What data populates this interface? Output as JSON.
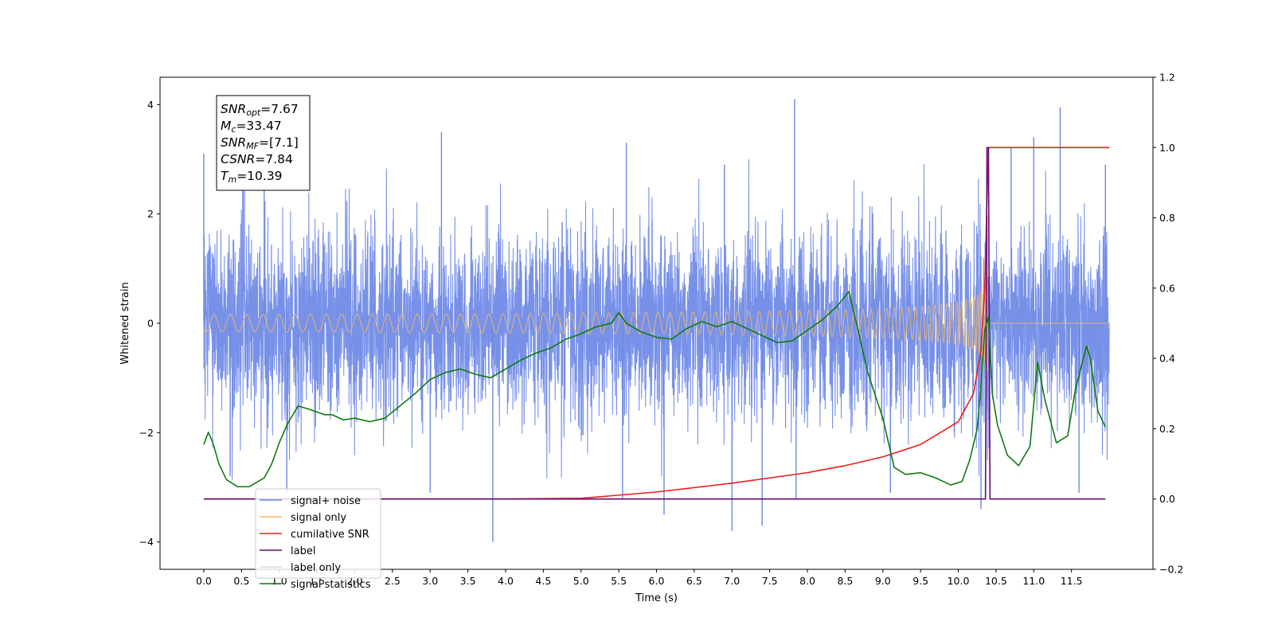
{
  "chart_data": {
    "type": "line",
    "title": "",
    "xlabel": "Time (s)",
    "ylabel": "Whitened strain",
    "xlim": [
      -0.58,
      12.58
    ],
    "ylim": [
      -4.5,
      4.5
    ],
    "y2lim": [
      -0.2,
      1.2
    ],
    "x_ticks": [
      "0.0",
      "0.5",
      "1.0",
      "1.5",
      "2.0",
      "2.5",
      "3.0",
      "3.5",
      "4.0",
      "4.5",
      "5.0",
      "5.5",
      "6.0",
      "6.5",
      "7.0",
      "7.5",
      "8.0",
      "8.5",
      "9.0",
      "9.5",
      "10.0",
      "10.5",
      "11.0",
      "11.5"
    ],
    "y_ticks": [
      "4",
      "2",
      "0",
      "−2",
      "−4"
    ],
    "y2_ticks": [
      "1.2",
      "1.0",
      "0.8",
      "0.6",
      "0.4",
      "0.2",
      "0.0",
      "−0.2"
    ],
    "grid": false,
    "legend_position": "lower-left",
    "series": [
      {
        "name": "signal+ noise",
        "axis": "left",
        "color": "#6c88e6",
        "noise_band": {
          "x_start": 0.0,
          "x_end": 12.0,
          "bulk_amplitude": [
            -1.9,
            1.9
          ]
        },
        "peaks": [
          {
            "x": 0.0,
            "y": 3.1
          },
          {
            "x": 0.35,
            "y": -2.8
          },
          {
            "x": 0.8,
            "y": 2.8
          },
          {
            "x": 1.1,
            "y": -3.1
          },
          {
            "x": 3.0,
            "y": -3.1
          },
          {
            "x": 3.15,
            "y": 3.5
          },
          {
            "x": 3.83,
            "y": -4.0
          },
          {
            "x": 5.6,
            "y": 3.3
          },
          {
            "x": 5.55,
            "y": -3.2
          },
          {
            "x": 6.1,
            "y": -3.5
          },
          {
            "x": 6.9,
            "y": 2.9
          },
          {
            "x": 7.0,
            "y": -3.8
          },
          {
            "x": 7.4,
            "y": -3.7
          },
          {
            "x": 7.83,
            "y": 4.1
          },
          {
            "x": 7.85,
            "y": -3.2
          },
          {
            "x": 9.1,
            "y": -3.1
          },
          {
            "x": 10.3,
            "y": -3.4
          },
          {
            "x": 10.7,
            "y": 3.2
          },
          {
            "x": 11.0,
            "y": 3.4
          },
          {
            "x": 11.35,
            "y": 3.95
          },
          {
            "x": 11.6,
            "y": -3.1
          },
          {
            "x": 11.95,
            "y": 2.9
          }
        ]
      },
      {
        "name": "signal only",
        "axis": "left",
        "color": "#f5b866",
        "chirp": {
          "x_start": 0.0,
          "x_end": 12.0,
          "merger_time": 10.39,
          "peak_amplitude": 0.9,
          "start_amplitude": 0.03
        }
      },
      {
        "name": "cumilative SNR",
        "axis": "right",
        "color": "#ee1c1c",
        "points": [
          [
            0.0,
            0.0
          ],
          [
            4.0,
            0.0
          ],
          [
            5.0,
            0.002
          ],
          [
            6.0,
            0.02
          ],
          [
            7.0,
            0.045
          ],
          [
            8.0,
            0.075
          ],
          [
            8.5,
            0.095
          ],
          [
            9.0,
            0.12
          ],
          [
            9.5,
            0.155
          ],
          [
            10.0,
            0.22
          ],
          [
            10.2,
            0.3
          ],
          [
            10.3,
            0.42
          ],
          [
            10.35,
            0.6
          ],
          [
            10.38,
            0.85
          ],
          [
            10.4,
            1.0
          ],
          [
            12.0,
            1.0
          ]
        ]
      },
      {
        "name": "label",
        "axis": "right",
        "color": "#6a0a6e",
        "points": [
          [
            0.0,
            0.0
          ],
          [
            10.36,
            0.0
          ],
          [
            10.38,
            1.0
          ],
          [
            10.4,
            1.0
          ],
          [
            10.42,
            0.0
          ],
          [
            11.95,
            0.0
          ]
        ]
      },
      {
        "name": "label only",
        "axis": "right",
        "color": "#d8d8d8",
        "points": []
      },
      {
        "name": "signal statistics",
        "axis": "right",
        "color": "#0e7b0e",
        "points": [
          [
            0.0,
            0.155
          ],
          [
            0.06,
            0.19
          ],
          [
            0.12,
            0.16
          ],
          [
            0.2,
            0.1
          ],
          [
            0.3,
            0.055
          ],
          [
            0.45,
            0.035
          ],
          [
            0.6,
            0.035
          ],
          [
            0.8,
            0.06
          ],
          [
            0.9,
            0.1
          ],
          [
            1.0,
            0.16
          ],
          [
            1.1,
            0.21
          ],
          [
            1.25,
            0.265
          ],
          [
            1.4,
            0.255
          ],
          [
            1.6,
            0.24
          ],
          [
            1.7,
            0.24
          ],
          [
            1.85,
            0.225
          ],
          [
            2.0,
            0.23
          ],
          [
            2.2,
            0.22
          ],
          [
            2.4,
            0.23
          ],
          [
            2.6,
            0.265
          ],
          [
            2.8,
            0.3
          ],
          [
            3.0,
            0.34
          ],
          [
            3.2,
            0.36
          ],
          [
            3.4,
            0.37
          ],
          [
            3.6,
            0.355
          ],
          [
            3.8,
            0.345
          ],
          [
            4.0,
            0.37
          ],
          [
            4.2,
            0.395
          ],
          [
            4.4,
            0.415
          ],
          [
            4.6,
            0.43
          ],
          [
            4.8,
            0.455
          ],
          [
            5.0,
            0.47
          ],
          [
            5.2,
            0.49
          ],
          [
            5.4,
            0.5
          ],
          [
            5.5,
            0.53
          ],
          [
            5.6,
            0.5
          ],
          [
            5.8,
            0.475
          ],
          [
            6.0,
            0.46
          ],
          [
            6.2,
            0.455
          ],
          [
            6.4,
            0.485
          ],
          [
            6.6,
            0.505
          ],
          [
            6.8,
            0.49
          ],
          [
            7.0,
            0.505
          ],
          [
            7.2,
            0.485
          ],
          [
            7.4,
            0.465
          ],
          [
            7.6,
            0.445
          ],
          [
            7.8,
            0.45
          ],
          [
            8.0,
            0.48
          ],
          [
            8.2,
            0.51
          ],
          [
            8.4,
            0.55
          ],
          [
            8.55,
            0.59
          ],
          [
            8.65,
            0.5
          ],
          [
            8.8,
            0.36
          ],
          [
            9.0,
            0.23
          ],
          [
            9.15,
            0.09
          ],
          [
            9.3,
            0.07
          ],
          [
            9.5,
            0.075
          ],
          [
            9.7,
            0.06
          ],
          [
            9.9,
            0.04
          ],
          [
            10.05,
            0.05
          ],
          [
            10.15,
            0.11
          ],
          [
            10.25,
            0.2
          ],
          [
            10.3,
            0.32
          ],
          [
            10.35,
            0.48
          ],
          [
            10.4,
            0.52
          ],
          [
            10.45,
            0.3
          ],
          [
            10.52,
            0.21
          ],
          [
            10.65,
            0.125
          ],
          [
            10.8,
            0.095
          ],
          [
            10.95,
            0.15
          ],
          [
            11.05,
            0.39
          ],
          [
            11.15,
            0.28
          ],
          [
            11.3,
            0.16
          ],
          [
            11.45,
            0.18
          ],
          [
            11.55,
            0.31
          ],
          [
            11.7,
            0.435
          ],
          [
            11.75,
            0.4
          ],
          [
            11.85,
            0.25
          ],
          [
            11.95,
            0.205
          ]
        ]
      }
    ],
    "annotations": [
      {
        "var": "SNR",
        "sub": "opt",
        "value": "=7.67"
      },
      {
        "var": "M",
        "sub": "c",
        "value": "=33.47"
      },
      {
        "var": "SNR",
        "sub": "MF",
        "value": "=[7.1]"
      },
      {
        "var": "CSNR",
        "sub": "",
        "value": "=7.84"
      },
      {
        "var": "T",
        "sub": "m",
        "value": "=10.39"
      }
    ]
  }
}
